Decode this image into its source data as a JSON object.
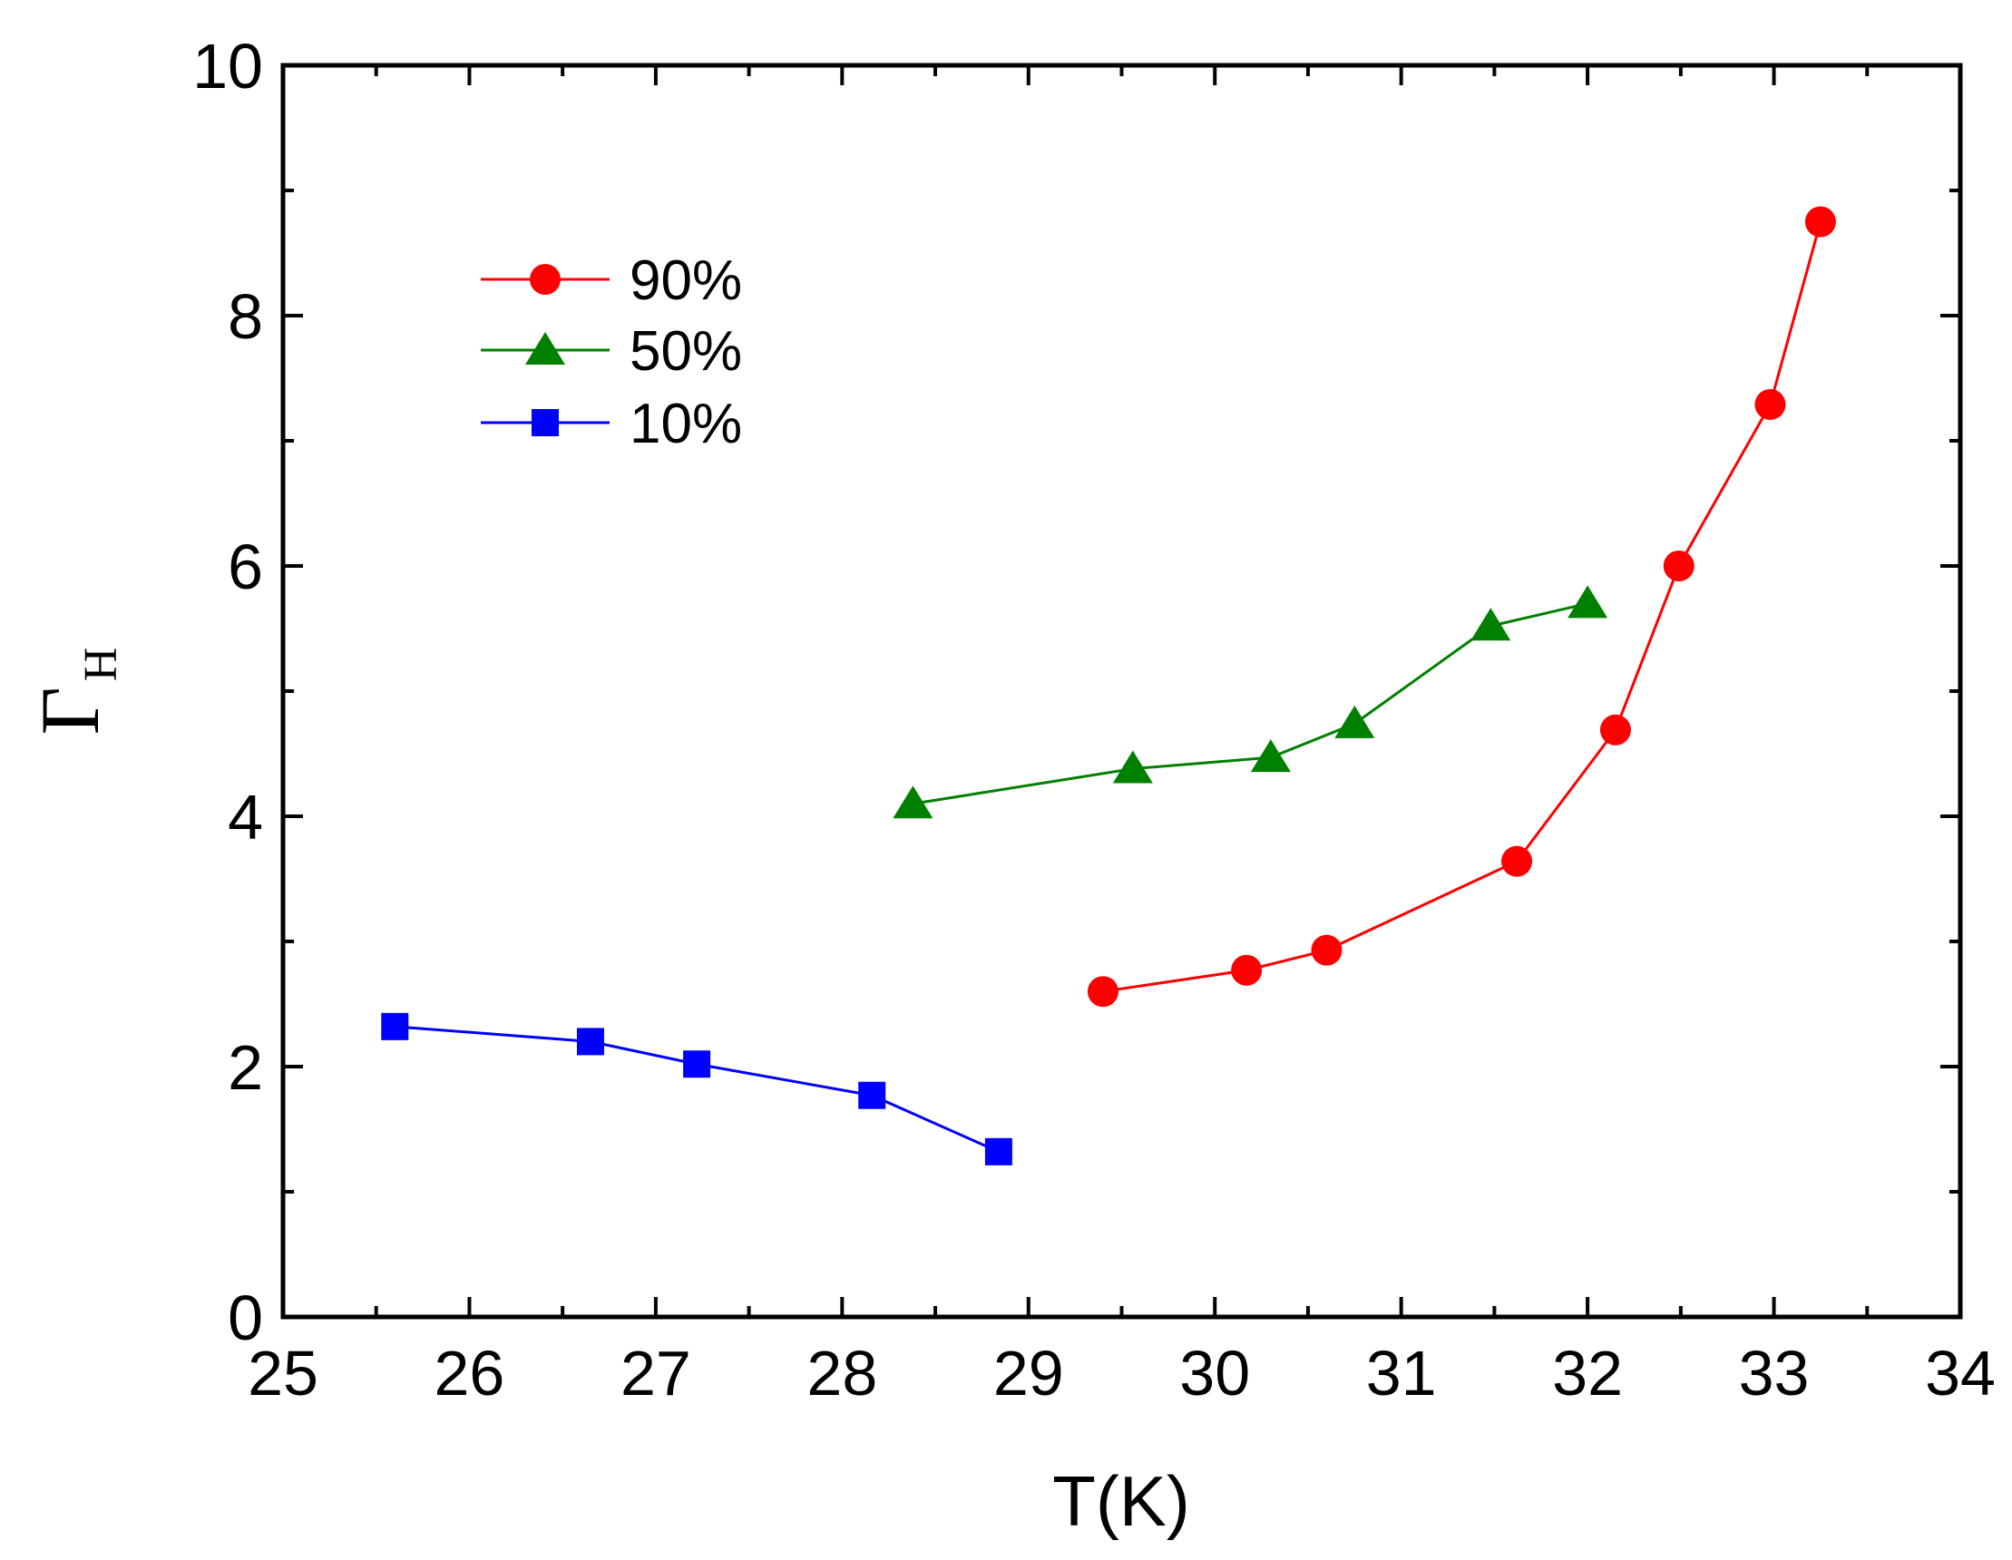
{
  "chart_data": {
    "type": "line",
    "title": "",
    "xlabel": "T(K)",
    "ylabel_main": "Γ",
    "ylabel_sub": "H",
    "xlim": [
      25,
      34
    ],
    "ylim": [
      0,
      10
    ],
    "xticks": [
      "25",
      "26",
      "27",
      "28",
      "29",
      "30",
      "31",
      "32",
      "33",
      "34"
    ],
    "yticks": [
      "0",
      "2",
      "4",
      "6",
      "8",
      "10"
    ],
    "legend_position": "top-left",
    "series": [
      {
        "name": "90%",
        "marker": "circle",
        "color": "#ff0000",
        "x": [
          29.4,
          30.17,
          30.6,
          31.62,
          32.15,
          32.49,
          32.98,
          33.25
        ],
        "y": [
          2.6,
          2.77,
          2.93,
          3.64,
          4.69,
          6.0,
          7.29,
          8.75
        ]
      },
      {
        "name": "50%",
        "marker": "triangle",
        "color": "#008000",
        "x": [
          28.38,
          29.56,
          30.3,
          30.75,
          31.48,
          32.0
        ],
        "y": [
          4.1,
          4.38,
          4.47,
          4.74,
          5.52,
          5.7
        ]
      },
      {
        "name": "10%",
        "marker": "square",
        "color": "#0000ff",
        "x": [
          25.6,
          26.65,
          27.22,
          28.16,
          28.84
        ],
        "y": [
          2.32,
          2.2,
          2.02,
          1.77,
          1.32
        ]
      }
    ]
  }
}
